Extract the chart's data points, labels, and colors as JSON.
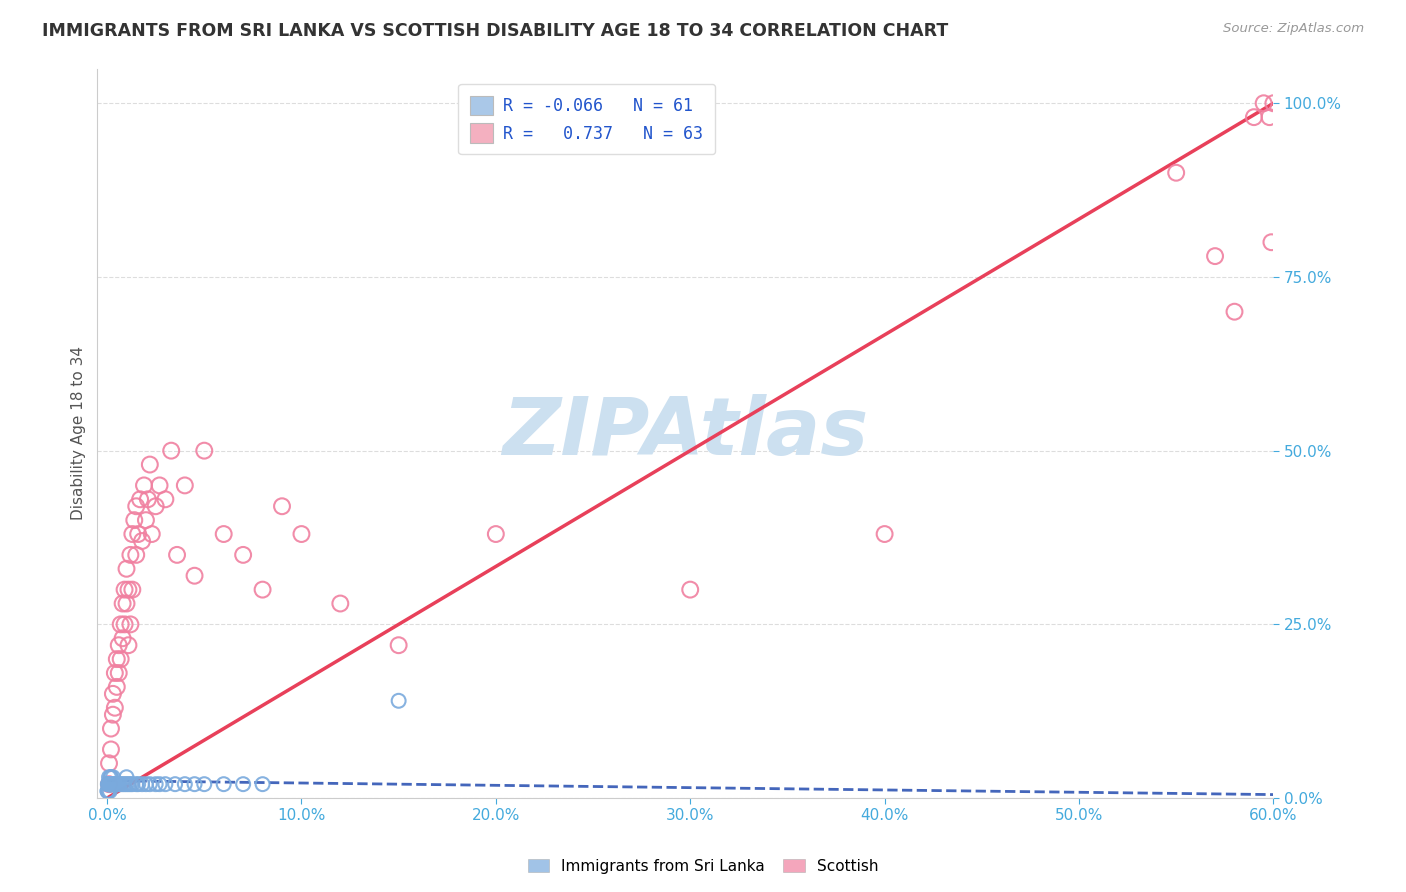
{
  "title": "IMMIGRANTS FROM SRI LANKA VS SCOTTISH DISABILITY AGE 18 TO 34 CORRELATION CHART",
  "source": "Source: ZipAtlas.com",
  "ylabel_label": "Disability Age 18 to 34",
  "xlim": [
    0.0,
    0.6
  ],
  "ylim": [
    0.0,
    1.05
  ],
  "watermark_text": "ZIPAtlas",
  "watermark_color": "#cce0f0",
  "sri_lanka_color": "#7aaadd",
  "scottish_color": "#f080a0",
  "sri_lanka_line_color": "#4466bb",
  "scottish_line_color": "#e8405a",
  "background_color": "#ffffff",
  "grid_color": "#dddddd",
  "title_color": "#333333",
  "axis_label_color": "#555555",
  "tick_color": "#44aadd",
  "legend_blue_color": "#aac8e8",
  "legend_pink_color": "#f4b0c0",
  "legend_text_color": "#2255cc",
  "r_blue": "-0.066",
  "n_blue": "61",
  "r_pink": "0.737",
  "n_pink": "63",
  "scottish_x": [
    0.001,
    0.001,
    0.002,
    0.002,
    0.003,
    0.003,
    0.004,
    0.004,
    0.005,
    0.005,
    0.006,
    0.006,
    0.007,
    0.007,
    0.008,
    0.008,
    0.009,
    0.009,
    0.01,
    0.01,
    0.011,
    0.011,
    0.012,
    0.012,
    0.013,
    0.013,
    0.014,
    0.015,
    0.015,
    0.016,
    0.017,
    0.018,
    0.019,
    0.02,
    0.021,
    0.022,
    0.023,
    0.025,
    0.027,
    0.03,
    0.033,
    0.036,
    0.04,
    0.045,
    0.05,
    0.06,
    0.07,
    0.08,
    0.09,
    0.1,
    0.12,
    0.15,
    0.2,
    0.3,
    0.4,
    0.55,
    0.57,
    0.58,
    0.59,
    0.595,
    0.598,
    0.599,
    0.6
  ],
  "scottish_y": [
    0.02,
    0.05,
    0.07,
    0.1,
    0.12,
    0.15,
    0.13,
    0.18,
    0.16,
    0.2,
    0.18,
    0.22,
    0.2,
    0.25,
    0.23,
    0.28,
    0.25,
    0.3,
    0.28,
    0.33,
    0.3,
    0.22,
    0.35,
    0.25,
    0.38,
    0.3,
    0.4,
    0.35,
    0.42,
    0.38,
    0.43,
    0.37,
    0.45,
    0.4,
    0.43,
    0.48,
    0.38,
    0.42,
    0.45,
    0.43,
    0.5,
    0.35,
    0.45,
    0.32,
    0.5,
    0.38,
    0.35,
    0.3,
    0.42,
    0.38,
    0.28,
    0.22,
    0.38,
    0.3,
    0.38,
    0.9,
    0.78,
    0.7,
    0.98,
    1.0,
    0.98,
    0.8,
    1.0
  ],
  "sri_lanka_x": [
    0.0002,
    0.0003,
    0.0004,
    0.0005,
    0.0006,
    0.0007,
    0.0008,
    0.0009,
    0.001,
    0.001,
    0.0012,
    0.0013,
    0.0014,
    0.0015,
    0.0016,
    0.0017,
    0.0018,
    0.002,
    0.002,
    0.002,
    0.0022,
    0.0023,
    0.0025,
    0.0027,
    0.003,
    0.003,
    0.003,
    0.0032,
    0.0035,
    0.004,
    0.004,
    0.0042,
    0.0045,
    0.005,
    0.005,
    0.006,
    0.006,
    0.007,
    0.008,
    0.009,
    0.01,
    0.01,
    0.011,
    0.012,
    0.013,
    0.015,
    0.016,
    0.018,
    0.02,
    0.022,
    0.025,
    0.027,
    0.03,
    0.035,
    0.04,
    0.045,
    0.05,
    0.06,
    0.07,
    0.08,
    0.15
  ],
  "sri_lanka_y": [
    0.01,
    0.01,
    0.02,
    0.01,
    0.02,
    0.01,
    0.02,
    0.02,
    0.02,
    0.03,
    0.02,
    0.02,
    0.01,
    0.02,
    0.02,
    0.02,
    0.03,
    0.02,
    0.02,
    0.03,
    0.02,
    0.02,
    0.02,
    0.02,
    0.02,
    0.03,
    0.02,
    0.02,
    0.02,
    0.02,
    0.02,
    0.02,
    0.02,
    0.02,
    0.02,
    0.02,
    0.02,
    0.02,
    0.02,
    0.02,
    0.02,
    0.03,
    0.02,
    0.02,
    0.02,
    0.02,
    0.02,
    0.02,
    0.02,
    0.02,
    0.02,
    0.02,
    0.02,
    0.02,
    0.02,
    0.02,
    0.02,
    0.02,
    0.02,
    0.02,
    0.14
  ],
  "scottish_line_x": [
    0.0,
    0.6
  ],
  "scottish_line_y": [
    0.0,
    1.0
  ],
  "sri_lanka_line_x": [
    0.0,
    0.6
  ],
  "sri_lanka_line_y": [
    0.025,
    0.005
  ]
}
